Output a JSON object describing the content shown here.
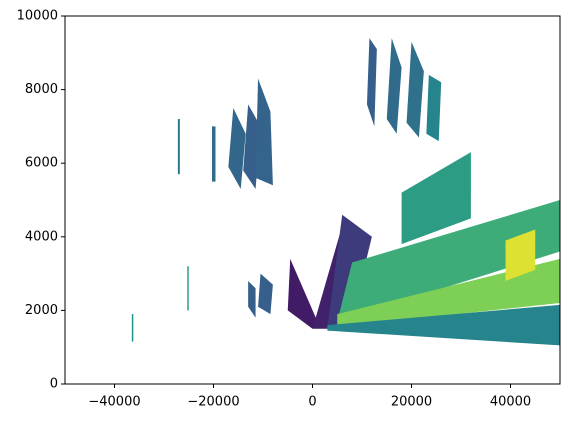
{
  "chart_data": {
    "type": "mesh",
    "xlim": [
      -50000,
      50000
    ],
    "ylim": [
      0,
      10000
    ],
    "xticks": [
      {
        "value": -40000,
        "label": "−40000"
      },
      {
        "value": -20000,
        "label": "−20000"
      },
      0,
      20000,
      40000
    ],
    "yticks": [
      0,
      2000,
      4000,
      6000,
      8000,
      10000
    ],
    "colormap": "viridis",
    "patches": [
      {
        "x": [
          -27200,
          -26800,
          -26800,
          -27200
        ],
        "y": [
          5700,
          5700,
          7200,
          7200
        ],
        "value": 0.4
      },
      {
        "x": [
          -20300,
          -19600,
          -19600,
          -20300
        ],
        "y": [
          5500,
          5500,
          7000,
          7000
        ],
        "value": 0.35
      },
      {
        "x": [
          -17000,
          -14500,
          -13500,
          -16000
        ],
        "y": [
          5900,
          5300,
          6800,
          7500
        ],
        "value": 0.33
      },
      {
        "x": [
          -14000,
          -11500,
          -10500,
          -13000
        ],
        "y": [
          5800,
          5300,
          7000,
          7600
        ],
        "value": 0.3
      },
      {
        "x": [
          -11500,
          -8000,
          -8500,
          -11000
        ],
        "y": [
          5600,
          5400,
          7400,
          8300
        ],
        "value": 0.32
      },
      {
        "x": [
          11000,
          12500,
          13000,
          11500
        ],
        "y": [
          7600,
          7000,
          9100,
          9400
        ],
        "value": 0.3
      },
      {
        "x": [
          15000,
          17000,
          18000,
          16000
        ],
        "y": [
          7200,
          6800,
          8600,
          9400
        ],
        "value": 0.35
      },
      {
        "x": [
          19000,
          21500,
          22500,
          20000
        ],
        "y": [
          7100,
          6700,
          8500,
          9300
        ],
        "value": 0.37
      },
      {
        "x": [
          23000,
          25500,
          26000,
          23500
        ],
        "y": [
          6800,
          6600,
          8200,
          8400
        ],
        "value": 0.45
      },
      {
        "x": [
          -36500,
          -36200,
          -36200,
          -36500
        ],
        "y": [
          1150,
          1150,
          1900,
          1900
        ],
        "value": 0.5
      },
      {
        "x": [
          -25300,
          -25000,
          -25000,
          -25300
        ],
        "y": [
          2000,
          2000,
          3200,
          3200
        ],
        "value": 0.55
      },
      {
        "x": [
          -13000,
          -11500,
          -11500,
          -13000
        ],
        "y": [
          2100,
          1800,
          2600,
          2800
        ],
        "value": 0.3
      },
      {
        "x": [
          -11000,
          -8500,
          -8000,
          -10500
        ],
        "y": [
          2100,
          1900,
          2700,
          3000
        ],
        "value": 0.3
      },
      {
        "x": [
          -5000,
          0,
          1000,
          -4500
        ],
        "y": [
          2000,
          1500,
          1700,
          3400
        ],
        "value": 0.08
      },
      {
        "x": [
          0,
          3000,
          10000,
          6000
        ],
        "y": [
          1500,
          1500,
          3900,
          4300
        ],
        "value": 0.1
      },
      {
        "x": [
          3000,
          8000,
          12000,
          6000
        ],
        "y": [
          1500,
          1800,
          4000,
          4600
        ],
        "value": 0.18
      },
      {
        "x": [
          5000,
          50000,
          50000,
          8000
        ],
        "y": [
          1700,
          3600,
          5000,
          3300
        ],
        "value": 0.62
      },
      {
        "x": [
          18000,
          32000,
          32000,
          18000
        ],
        "y": [
          3800,
          4500,
          6300,
          5200
        ],
        "value": 0.55
      },
      {
        "x": [
          5000,
          50000,
          50000,
          5000
        ],
        "y": [
          1550,
          2200,
          3400,
          1900
        ],
        "value": 0.8
      },
      {
        "x": [
          3000,
          50000,
          50000,
          3000
        ],
        "y": [
          1450,
          1050,
          2150,
          1600
        ],
        "value": 0.45
      },
      {
        "x": [
          39000,
          45000,
          45000,
          39000
        ],
        "y": [
          2800,
          3100,
          4200,
          3900
        ],
        "value": 0.95
      }
    ]
  }
}
